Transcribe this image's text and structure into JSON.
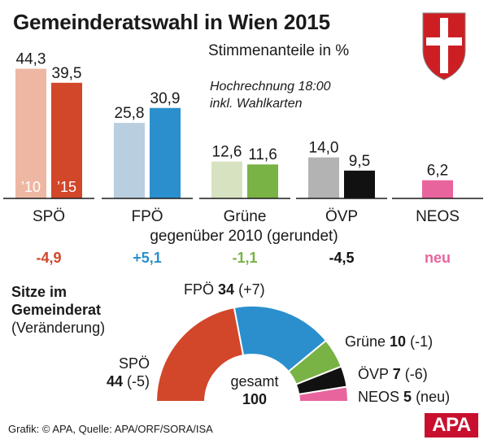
{
  "header": {
    "title": "Gemeinderatswahl in Wien 2015",
    "subtitle": "Stimmenanteile in %",
    "note_line1": "Hochrechnung 18:00",
    "note_line2": "inkl. Wahlkarten"
  },
  "chart_data": [
    {
      "type": "bar",
      "categories": [
        "SPÖ",
        "FPÖ",
        "Grüne",
        "ÖVP",
        "NEOS"
      ],
      "series": [
        {
          "name": "’10",
          "values": [
            44.3,
            25.8,
            12.6,
            14.0,
            null
          ]
        },
        {
          "name": "’15",
          "values": [
            39.5,
            30.9,
            11.6,
            9.5,
            6.2
          ]
        }
      ],
      "value_labels_2010": [
        "44,3",
        "25,8",
        "12,6",
        "14,0",
        ""
      ],
      "value_labels_2015": [
        "39,5",
        "30,9",
        "11,6",
        "9,5",
        "6,2"
      ],
      "colors_2010": [
        "#eeb7a3",
        "#b9cedf",
        "#d7e3c0",
        "#b3b3b3",
        "#ffffff"
      ],
      "colors_2015": [
        "#d2462a",
        "#2b8fcd",
        "#79b245",
        "#111111",
        "#e8649d"
      ],
      "change_label": "gegenüber 2010 (gerundet)",
      "changes": [
        "-4,9",
        "+5,1",
        "-1,1",
        "-4,5",
        "neu"
      ],
      "change_colors": [
        "#d2462a",
        "#2b8fcd",
        "#79b245",
        "#111111",
        "#e8649d"
      ],
      "ylim": [
        0,
        45
      ]
    },
    {
      "type": "pie",
      "title_line1": "Sitze im",
      "title_line2": "Gemeinderat",
      "title_line3": "(Veränderung)",
      "categories": [
        "SPÖ",
        "FPÖ",
        "Grüne",
        "ÖVP",
        "NEOS"
      ],
      "values": [
        44,
        34,
        10,
        7,
        5
      ],
      "change_labels": [
        "(-5)",
        "(+7)",
        "(-1)",
        "(-6)",
        "(neu)"
      ],
      "colors": [
        "#d2462a",
        "#2b8fcd",
        "#79b245",
        "#111111",
        "#e8649d"
      ],
      "total_label": "gesamt",
      "total": 100
    }
  ],
  "footer": {
    "source": "Grafik: © APA, Quelle: APA/ORF/SORA/ISA",
    "logo": "APA"
  },
  "icons": {
    "coat_of_arms": "vienna-coat-of-arms-icon"
  }
}
